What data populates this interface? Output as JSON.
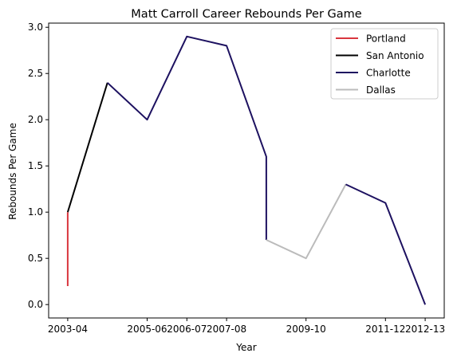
{
  "chart_data": {
    "type": "line",
    "title": "Matt Carroll  Career Rebounds Per Game",
    "xlabel": "Year",
    "ylabel": "Rebounds Per Game",
    "x_ticks": [
      "2003-04",
      "2005-06",
      "2006-07",
      "2007-08",
      "2009-10",
      "2011-12",
      "2012-13"
    ],
    "x_tick_positions": [
      0,
      2,
      3,
      4,
      6,
      8,
      9
    ],
    "y_ticks": [
      "0.0",
      "0.5",
      "1.0",
      "1.5",
      "2.0",
      "2.5",
      "3.0"
    ],
    "xlim": [
      -0.48,
      9.48
    ],
    "ylim": [
      -0.145,
      3.045
    ],
    "grid": false,
    "legend_position": "top-right",
    "series": [
      {
        "name": "Portland",
        "color": "#d9363e",
        "x": [
          0,
          0
        ],
        "y": [
          0.2,
          1.0
        ]
      },
      {
        "name": "San Antonio",
        "color": "#000000",
        "x": [
          0,
          1
        ],
        "y": [
          1.0,
          2.4
        ]
      },
      {
        "name": "Charlotte",
        "color": "#1d1160",
        "x": [
          1,
          2,
          3,
          4,
          5,
          5,
          5
        ],
        "y": [
          2.4,
          2.0,
          2.9,
          2.8,
          1.6,
          1.6,
          0.7
        ]
      },
      {
        "name": "Dallas",
        "color": "#bbbbbb",
        "x": [
          5,
          6,
          7
        ],
        "y": [
          0.7,
          0.5,
          1.3
        ]
      },
      {
        "name": "Charlotte",
        "color": "#1d1160",
        "x": [
          7,
          8,
          9
        ],
        "y": [
          1.3,
          1.1,
          0.0
        ],
        "in_legend": false
      }
    ],
    "legend": [
      {
        "name": "Portland",
        "color": "#d9363e"
      },
      {
        "name": "San Antonio",
        "color": "#000000"
      },
      {
        "name": "Charlotte",
        "color": "#1d1160"
      },
      {
        "name": "Dallas",
        "color": "#bbbbbb"
      }
    ]
  }
}
